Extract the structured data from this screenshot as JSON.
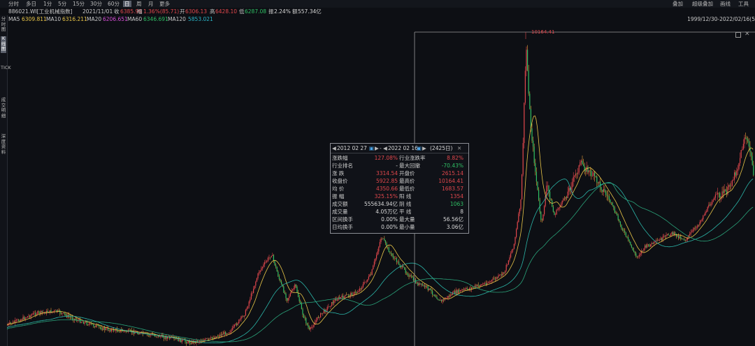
{
  "toolbar": {
    "periods": [
      "分时",
      "多日",
      "1分",
      "5分",
      "15分",
      "30分",
      "60分",
      "日",
      "周",
      "月",
      "更多"
    ],
    "active_period": "日",
    "right": [
      "叠加",
      "超级叠加",
      "画线",
      "工具"
    ]
  },
  "info": {
    "code": "886021.WI[工业机械指数]",
    "date": "2021/11/01",
    "close_label": "收",
    "close": "6385.99",
    "change_label": "幅",
    "change": "1.36%(85.71)",
    "open_label": "开",
    "open": "6306.13",
    "high_label": "高",
    "high": "6428.10",
    "low_label": "低",
    "low": "6287.08",
    "amp_label": "振",
    "amp": "2.24%",
    "amount_label": "额",
    "amount": "557.34亿"
  },
  "ma": {
    "ma5_label": "MA5",
    "ma5": "6309.811",
    "ma10_label": "MA10",
    "ma10": "6316.211",
    "ma20_label": "MA20",
    "ma20": "6206.651",
    "ma60_label": "MA60",
    "ma60": "6346.691",
    "ma120_label": "MA120",
    "ma120": "5853.021",
    "range": "1999/12/30-2022/02/16(5"
  },
  "sidebar": {
    "fenshi": "分时图",
    "kxian": "K线图",
    "tick": "TICK",
    "chengjiao": "成交明细",
    "shendu": "深度资料"
  },
  "chart_data": {
    "type": "candlestick",
    "peak_label": "10164.41",
    "colors": {
      "up": "#e0474c",
      "down": "#2fbf64",
      "ma_a": "#e8c548",
      "ma_b": "#2bb5a8",
      "ma_c": "#2aa37a"
    }
  },
  "tooltip": {
    "start_date": "2012 02 27",
    "end_date": "2022 02 16",
    "count": "(2425日)",
    "rows": [
      {
        "l1": "涨跌幅",
        "v1": "127.08%",
        "c1": "red",
        "l2": "行业涨跌率",
        "v2": "8.82%",
        "c2": "red"
      },
      {
        "l1": "行业排名",
        "v1": "-",
        "c1": "white",
        "l2": "最大回撤",
        "v2": "-70.43%",
        "c2": "green"
      },
      {
        "l1": "涨  跌",
        "v1": "3314.54",
        "c1": "red",
        "l2": "开盘价",
        "v2": "2615.14",
        "c2": "red"
      },
      {
        "l1": "收盘价",
        "v1": "5922.85",
        "c1": "red",
        "l2": "最高价",
        "v2": "10164.41",
        "c2": "red"
      },
      {
        "l1": "均  价",
        "v1": "4350.66",
        "c1": "red",
        "l2": "最低价",
        "v2": "1683.57",
        "c2": "red"
      },
      {
        "l1": "振  幅",
        "v1": "325.15%",
        "c1": "red",
        "l2": "阳  线",
        "v2": "1354",
        "c2": "red"
      },
      {
        "l1": "成交额",
        "v1": "555634.94亿",
        "c1": "white",
        "l2": "阴  线",
        "v2": "1063",
        "c2": "green"
      },
      {
        "l1": "成交量",
        "v1": "4.05万亿",
        "c1": "white",
        "l2": "平  线",
        "v2": "8",
        "c2": "white"
      },
      {
        "l1": "区间换手",
        "v1": "0.00%",
        "c1": "white",
        "l2": "最大量",
        "v2": "56.56亿",
        "c2": "white"
      },
      {
        "l1": "日均换手",
        "v1": "0.00%",
        "c1": "white",
        "l2": "最小量",
        "v2": "3.06亿",
        "c2": "white"
      }
    ]
  }
}
